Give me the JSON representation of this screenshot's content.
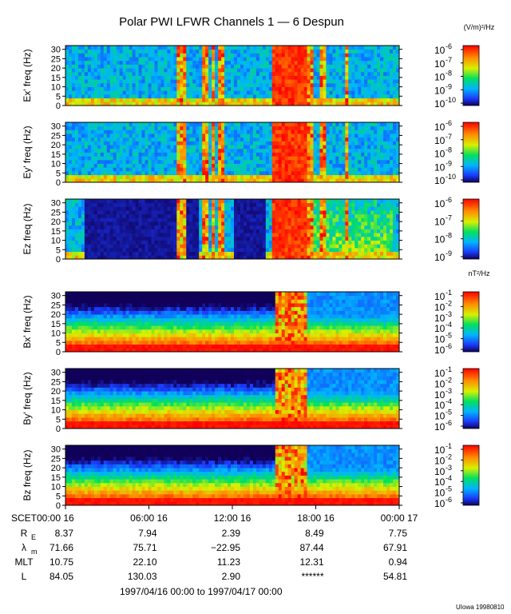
{
  "chart_data": {
    "type": "heatmap",
    "title": "Polar PWI LFWR Channels 1 — 6 Despun",
    "ylim": [
      0,
      32
    ],
    "y_ticks": [
      "0",
      "5",
      "10",
      "15",
      "20",
      "25",
      "30"
    ],
    "x_tick_labels": [
      "SCET00:00 16",
      "06:00 16",
      "12:00 16",
      "18:00 16",
      "00:00 17"
    ],
    "date_range": "1997/04/16 00:00 to 1997/04/17 00:00",
    "panels": [
      {
        "ylabel": "Ex' freq (Hz)",
        "units": "(V/m)²/Hz",
        "cb_mant": [
          "10",
          "10",
          "10",
          "10",
          "10"
        ],
        "cb_exp": [
          "-6",
          "-7",
          "-8",
          "-9",
          "-10"
        ]
      },
      {
        "ylabel": "Ey' freq (Hz)",
        "units": "",
        "cb_mant": [
          "10",
          "10",
          "10",
          "10",
          "10"
        ],
        "cb_exp": [
          "-6",
          "-7",
          "-8",
          "-9",
          "-10"
        ]
      },
      {
        "ylabel": "Ez freq (Hz)",
        "units": "",
        "cb_mant": [
          "10",
          "10",
          "10",
          "10"
        ],
        "cb_exp": [
          "-6",
          "-7",
          "-8",
          "-9"
        ]
      },
      {
        "ylabel": "Bx' freq (Hz)",
        "units": "nT²/Hz",
        "cb_mant": [
          "10",
          "10",
          "10",
          "10",
          "10",
          "10"
        ],
        "cb_exp": [
          "-1",
          "-2",
          "-3",
          "-4",
          "-5",
          "-6"
        ]
      },
      {
        "ylabel": "By' freq (Hz)",
        "units": "",
        "cb_mant": [
          "10",
          "10",
          "10",
          "10",
          "10",
          "10"
        ],
        "cb_exp": [
          "-1",
          "-2",
          "-3",
          "-4",
          "-5",
          "-6"
        ]
      },
      {
        "ylabel": "Bz freq (Hz)",
        "units": "",
        "cb_mant": [
          "10",
          "10",
          "10",
          "10",
          "10",
          "10"
        ],
        "cb_exp": [
          "-1",
          "-2",
          "-3",
          "-4",
          "-5",
          "-6"
        ]
      }
    ],
    "ephemeris": [
      {
        "label": "R",
        "sub": "E",
        "values": [
          "8.37",
          "7.94",
          "2.39",
          "8.49",
          "7.75"
        ]
      },
      {
        "label": "λ",
        "sub": "m",
        "values": [
          "71.66",
          "75.71",
          "−22.95",
          "87.44",
          "67.91"
        ]
      },
      {
        "label": "MLT",
        "sub": "",
        "values": [
          "10.75",
          "22.10",
          "11.23",
          "12.31",
          "0.94"
        ]
      },
      {
        "label": "L",
        "sub": "",
        "values": [
          "84.05",
          "130.03",
          "2.90",
          "******",
          "54.81"
        ]
      }
    ],
    "credit": "UIowa 19980810"
  }
}
